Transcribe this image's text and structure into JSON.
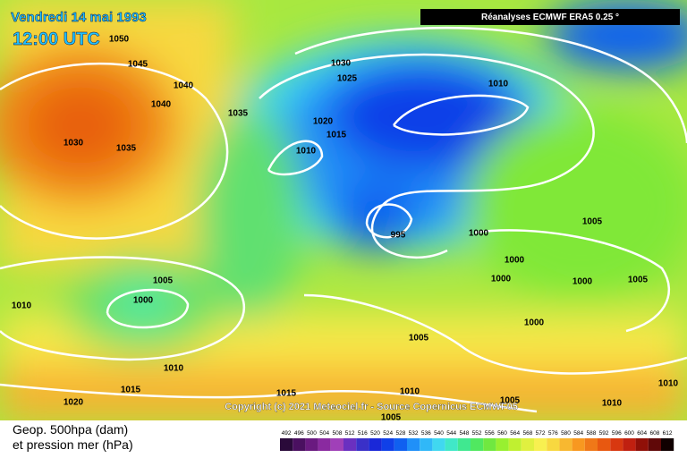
{
  "header": {
    "date": "Vendredi 14 mai 1993",
    "time": "12:00 UTC",
    "source": "Réanalyses ECMWF ERA5 0.25 °"
  },
  "copyright": "Copyright (c) 2021 Meteociel.fr - Source Copernicus ECMWF05",
  "legend": {
    "line1": "Geop. 500hpa (dam)",
    "line2": "et pression mer (hPa)"
  },
  "scale": {
    "labels": [
      "492",
      "496",
      "500",
      "504",
      "508",
      "512",
      "516",
      "520",
      "524",
      "528",
      "532",
      "536",
      "540",
      "544",
      "548",
      "552",
      "556",
      "560",
      "564",
      "568",
      "572",
      "576",
      "580",
      "584",
      "588",
      "592",
      "596",
      "600",
      "604",
      "608",
      "612"
    ],
    "colors": [
      "#2a0a3a",
      "#4a1060",
      "#6a1a80",
      "#8a2aa0",
      "#a040b8",
      "#6a30c0",
      "#3a30c8",
      "#1a28d8",
      "#1040e8",
      "#1060f0",
      "#2090f8",
      "#30b8f8",
      "#40d8f0",
      "#40e8c8",
      "#40e890",
      "#50e860",
      "#70e840",
      "#98f030",
      "#c0f030",
      "#e0f040",
      "#f8f050",
      "#f8d840",
      "#f8b830",
      "#f89820",
      "#f07818",
      "#e85810",
      "#d83810",
      "#c02010",
      "#901008",
      "#600808",
      "#100000"
    ]
  },
  "isobars": [
    "1050",
    "1045",
    "1040",
    "1040",
    "1035",
    "1030",
    "1035",
    "1030",
    "1025",
    "1020",
    "1015",
    "1010",
    "1010",
    "995",
    "1000",
    "1005",
    "1000",
    "1000",
    "1000",
    "1005",
    "1005",
    "1000",
    "1010",
    "1000",
    "1005",
    "1010",
    "1015",
    "1020",
    "1015",
    "1010",
    "1005",
    "1010",
    "1010",
    "1005"
  ]
}
